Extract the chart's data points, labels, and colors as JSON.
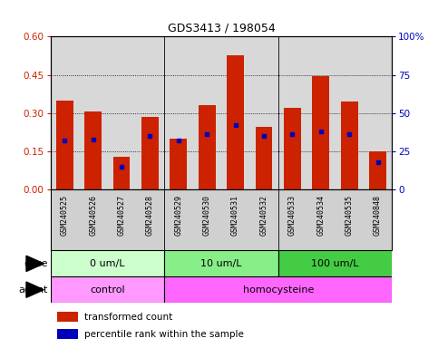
{
  "title": "GDS3413 / 198054",
  "samples": [
    "GSM240525",
    "GSM240526",
    "GSM240527",
    "GSM240528",
    "GSM240529",
    "GSM240530",
    "GSM240531",
    "GSM240532",
    "GSM240533",
    "GSM240534",
    "GSM240535",
    "GSM240848"
  ],
  "transformed_count": [
    0.35,
    0.305,
    0.13,
    0.285,
    0.2,
    0.33,
    0.525,
    0.245,
    0.32,
    0.445,
    0.345,
    0.15
  ],
  "percentile_rank_pct": [
    32,
    33,
    15,
    35,
    32,
    36,
    42,
    35,
    36,
    38,
    36,
    18
  ],
  "ylim_left": [
    0,
    0.6
  ],
  "ylim_right": [
    0,
    100
  ],
  "yticks_left": [
    0,
    0.15,
    0.3,
    0.45,
    0.6
  ],
  "yticks_right": [
    0,
    25,
    50,
    75,
    100
  ],
  "dose_groups": [
    {
      "label": "0 um/L",
      "start": 0,
      "end": 4
    },
    {
      "label": "10 um/L",
      "start": 4,
      "end": 8
    },
    {
      "label": "100 um/L",
      "start": 8,
      "end": 12
    }
  ],
  "dose_colors": [
    "#ccffcc",
    "#88ee88",
    "#44cc44"
  ],
  "agent_groups": [
    {
      "label": "control",
      "start": 0,
      "end": 4
    },
    {
      "label": "homocysteine",
      "start": 4,
      "end": 12
    }
  ],
  "agent_colors": [
    "#ff99ff",
    "#ff66ff"
  ],
  "bar_color": "#cc2200",
  "marker_color": "#0000bb",
  "plot_bg_color": "#d8d8d8",
  "sample_bg_color": "#d0d0d0",
  "legend_items": [
    {
      "label": "transformed count",
      "color": "#cc2200"
    },
    {
      "label": "percentile rank within the sample",
      "color": "#0000bb"
    }
  ],
  "dose_label": "dose",
  "agent_label": "agent",
  "left_axis_color": "#cc2200",
  "right_axis_color": "#0000bb"
}
